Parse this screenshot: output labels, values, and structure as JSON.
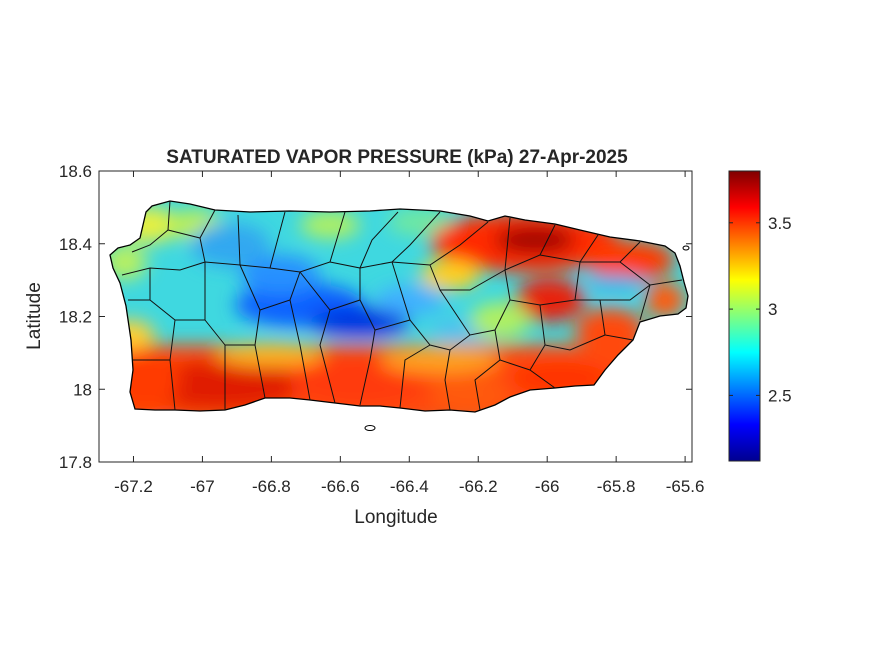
{
  "title": "SATURATED VAPOR PRESSURE (kPa) 27-Apr-2025",
  "map": {
    "xlabel": "Longitude",
    "ylabel": "Latitude",
    "xlim": [
      -67.3,
      -65.58
    ],
    "ylim": [
      17.8,
      18.6
    ],
    "xticks": [
      "-67.2",
      "-67",
      "-66.8",
      "-66.6",
      "-66.4",
      "-66.2",
      "-66",
      "-65.8",
      "-65.6"
    ],
    "xtick_values": [
      -67.2,
      -67.0,
      -66.8,
      -66.6,
      -66.4,
      -66.2,
      -66.0,
      -65.8,
      -65.6
    ],
    "yticks": [
      "18.6",
      "18.4",
      "18.2",
      "18",
      "17.8"
    ],
    "ytick_values": [
      18.6,
      18.4,
      18.2,
      18.0,
      17.8
    ]
  },
  "colorbar": {
    "colormap": "jet",
    "range": [
      2.12,
      3.8
    ],
    "ticks": [
      "3.5",
      "3",
      "2.5"
    ],
    "tick_values": [
      3.5,
      3.0,
      2.5
    ]
  },
  "colors": {
    "outline": "#000000",
    "axis": "#262626",
    "background": "#ffffff"
  }
}
